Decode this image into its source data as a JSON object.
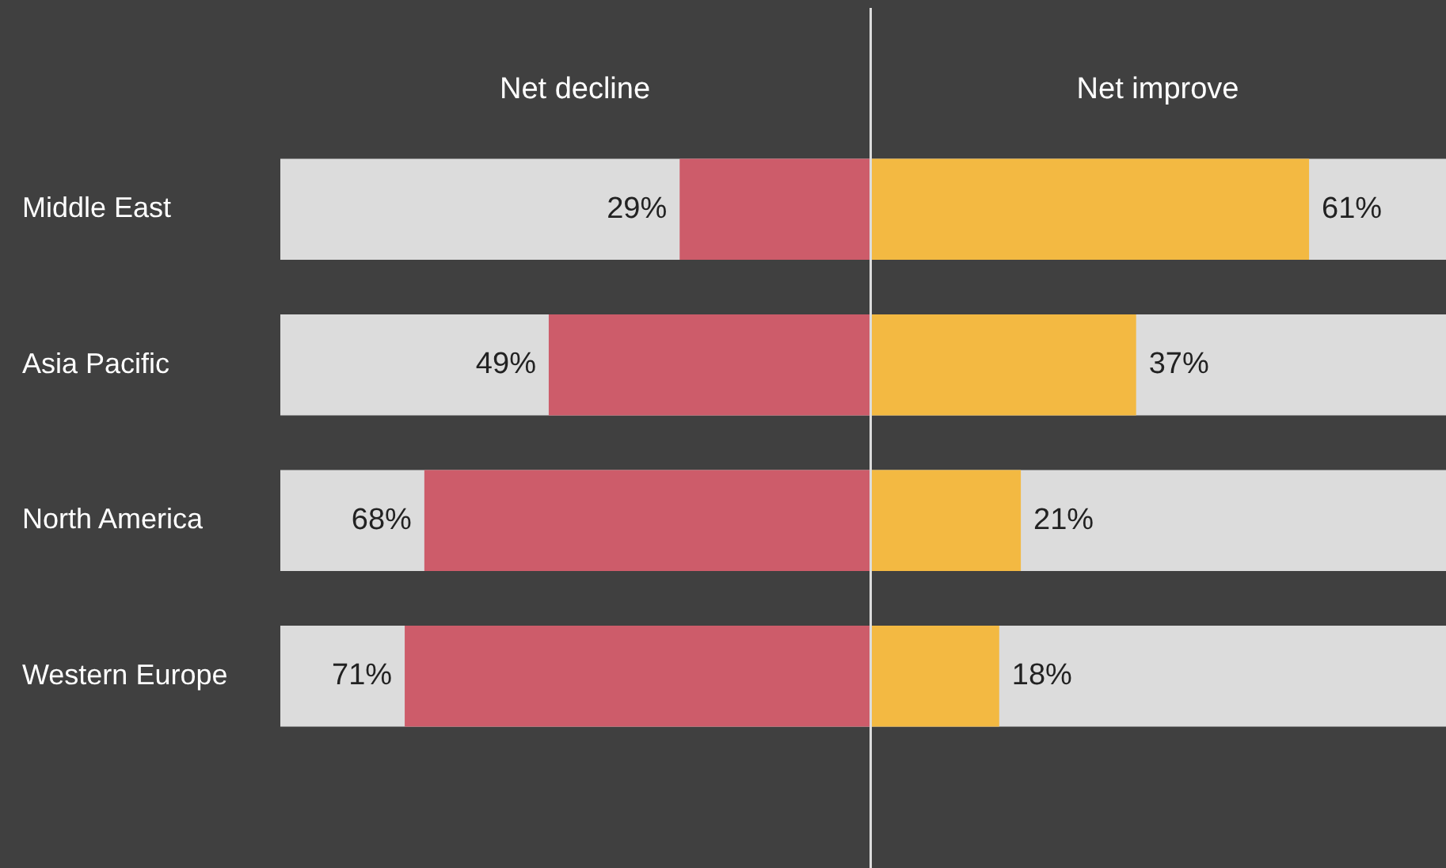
{
  "chart_data": [
    {
      "type": "bar",
      "orientation": "horizontal",
      "categories": [
        "Middle East",
        "Asia Pacific",
        "North America",
        "Western Europe"
      ],
      "series": [
        {
          "name": "Net decline",
          "color": "#cd5c6a",
          "values": [
            29,
            49,
            68,
            71
          ],
          "value_labels": [
            "29%",
            "49%",
            "68%",
            "71%"
          ]
        }
      ],
      "tick_labels": "y",
      "legend": false
    },
    {
      "type": "bar",
      "orientation": "horizontal",
      "categories": [
        null,
        null,
        null,
        null
      ],
      "series": [
        {
          "name": "Net improve",
          "color": "#f3b942",
          "values": [
            61,
            37,
            21,
            18
          ],
          "value_labels": [
            "61%",
            "37%",
            "21%",
            "18%"
          ]
        }
      ],
      "tick_labels": false,
      "legend": false
    }
  ]
}
